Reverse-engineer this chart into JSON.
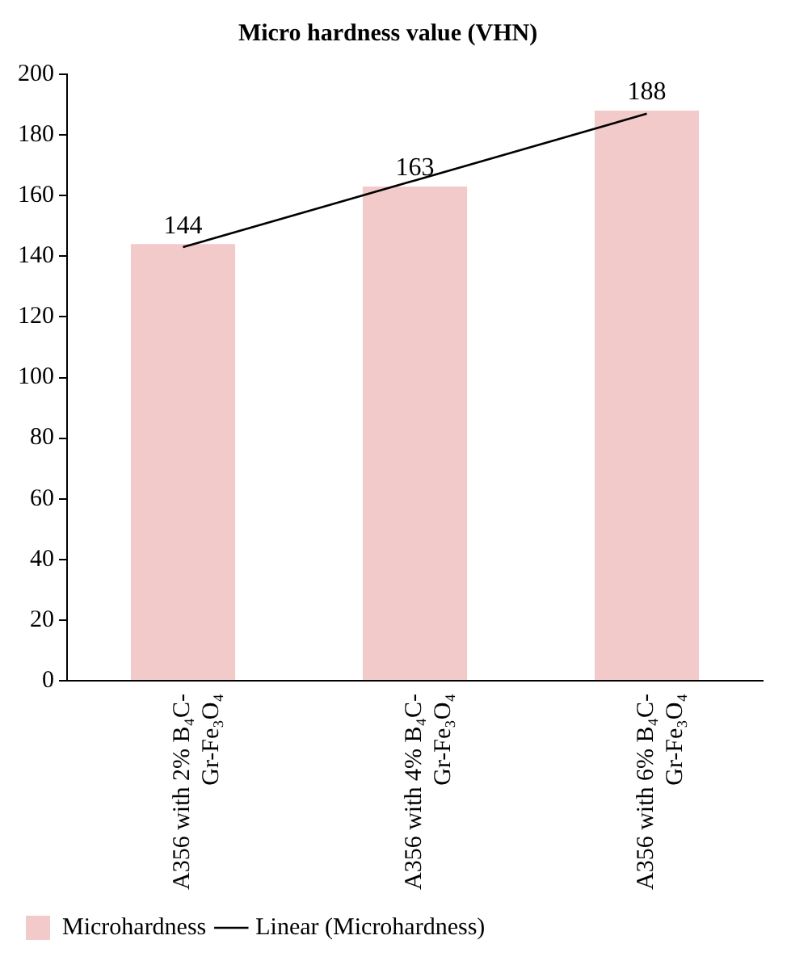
{
  "chart_data": {
    "type": "bar",
    "title": "Micro hardness value (VHN)",
    "categories": [
      "A356 with 2% B₄C-Gr-Fe₃O₄",
      "A356 with 4% B₄C-Gr-Fe₃O₄",
      "A356 with 6% B₄C-Gr-Fe₃O₄"
    ],
    "series": [
      {
        "name": "Microhardness",
        "color": "#f2caca",
        "values": [
          144,
          163,
          188
        ],
        "value_labels": [
          "144",
          "163",
          "188"
        ]
      },
      {
        "name": "Linear (Microhardness)",
        "type": "line",
        "color": "#000000",
        "values": [
          143,
          165,
          187
        ]
      }
    ],
    "ylim": [
      0,
      200
    ],
    "yticks": [
      0,
      20,
      40,
      60,
      80,
      100,
      120,
      140,
      160,
      180,
      200
    ],
    "grid": false,
    "legend": "bottom left",
    "marker": "none",
    "line_style": "solid"
  }
}
